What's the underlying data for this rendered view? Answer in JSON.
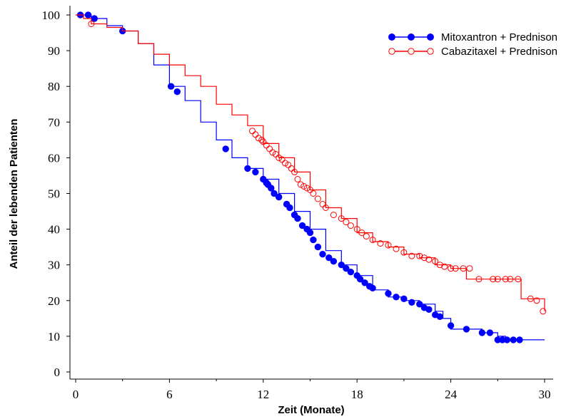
{
  "chart_data": {
    "type": "line",
    "subtype": "kaplan-meier",
    "title": "",
    "xlabel": "Zeit (Monate)",
    "ylabel": "Anteil der lebenden Patienten",
    "xlim": [
      0,
      30
    ],
    "ylim": [
      0,
      100
    ],
    "x_ticks": [
      0,
      6,
      12,
      18,
      24,
      30
    ],
    "y_ticks": [
      0,
      10,
      20,
      30,
      40,
      50,
      60,
      70,
      80,
      90,
      100
    ],
    "grid": false,
    "legend_position": "top-right",
    "series": [
      {
        "name": "Mitoxantron + Prednison",
        "color": "#0000ff",
        "marker": "filled-circle",
        "curve": [
          [
            0,
            100
          ],
          [
            0.5,
            100
          ],
          [
            1.0,
            99
          ],
          [
            2.0,
            97
          ],
          [
            3.0,
            95.5
          ],
          [
            4.0,
            92
          ],
          [
            5.0,
            86
          ],
          [
            6.0,
            80
          ],
          [
            7.0,
            76
          ],
          [
            8.0,
            70
          ],
          [
            9.0,
            65
          ],
          [
            10.0,
            60
          ],
          [
            11.0,
            57
          ],
          [
            12.0,
            54
          ],
          [
            13.0,
            50
          ],
          [
            14.0,
            45
          ],
          [
            15.0,
            40
          ],
          [
            16.0,
            34
          ],
          [
            17.0,
            30
          ],
          [
            18.0,
            27
          ],
          [
            19.0,
            23
          ],
          [
            20.0,
            21
          ],
          [
            21.0,
            20
          ],
          [
            22.0,
            19
          ],
          [
            23.0,
            17
          ],
          [
            23.5,
            15
          ],
          [
            24.0,
            12
          ],
          [
            25.0,
            12
          ],
          [
            26.0,
            11
          ],
          [
            27.0,
            10
          ],
          [
            27.5,
            9
          ],
          [
            30.0,
            9
          ]
        ],
        "censored": [
          [
            0.3,
            100
          ],
          [
            0.8,
            100
          ],
          [
            1.2,
            99
          ],
          [
            3.0,
            95.5
          ],
          [
            6.1,
            80
          ],
          [
            6.5,
            78.5
          ],
          [
            9.6,
            62.5
          ],
          [
            11.0,
            57
          ],
          [
            11.5,
            56
          ],
          [
            12.0,
            54
          ],
          [
            12.2,
            53
          ],
          [
            12.3,
            52.5
          ],
          [
            12.5,
            51.5
          ],
          [
            12.7,
            50
          ],
          [
            13.0,
            49
          ],
          [
            13.5,
            47
          ],
          [
            13.7,
            46
          ],
          [
            14.0,
            44
          ],
          [
            14.2,
            43
          ],
          [
            14.5,
            41
          ],
          [
            14.8,
            40
          ],
          [
            15.0,
            39
          ],
          [
            15.2,
            37
          ],
          [
            15.5,
            35
          ],
          [
            15.8,
            33
          ],
          [
            16.2,
            32
          ],
          [
            16.5,
            31
          ],
          [
            17.0,
            30
          ],
          [
            17.3,
            29
          ],
          [
            17.6,
            28
          ],
          [
            18.0,
            27
          ],
          [
            18.2,
            26
          ],
          [
            18.5,
            25
          ],
          [
            18.8,
            24
          ],
          [
            19.0,
            23.5
          ],
          [
            20.0,
            22
          ],
          [
            20.5,
            21
          ],
          [
            21.0,
            20.5
          ],
          [
            21.5,
            19.5
          ],
          [
            22.0,
            19
          ],
          [
            22.3,
            18
          ],
          [
            22.6,
            17.5
          ],
          [
            23.0,
            16
          ],
          [
            23.3,
            15.5
          ],
          [
            24.0,
            13
          ],
          [
            25.0,
            12
          ],
          [
            26.0,
            11
          ],
          [
            26.5,
            11
          ],
          [
            27.0,
            9
          ],
          [
            27.3,
            9
          ],
          [
            27.6,
            9
          ],
          [
            28.0,
            9
          ],
          [
            28.4,
            9
          ]
        ]
      },
      {
        "name": "Cabazitaxel + Prednison",
        "color": "#ff0000",
        "marker": "open-circle",
        "curve": [
          [
            0,
            100
          ],
          [
            0.5,
            99
          ],
          [
            1.0,
            97.5
          ],
          [
            2.0,
            96.5
          ],
          [
            3.0,
            95.5
          ],
          [
            4.0,
            92
          ],
          [
            5.0,
            89
          ],
          [
            6.0,
            86
          ],
          [
            7.0,
            83
          ],
          [
            8.0,
            80
          ],
          [
            9.0,
            75
          ],
          [
            10.0,
            72
          ],
          [
            11.0,
            69
          ],
          [
            12.0,
            64
          ],
          [
            13.0,
            60
          ],
          [
            14.0,
            56
          ],
          [
            15.0,
            51
          ],
          [
            16.0,
            46
          ],
          [
            17.0,
            43
          ],
          [
            18.0,
            39
          ],
          [
            19.0,
            36.5
          ],
          [
            20.0,
            35
          ],
          [
            21.0,
            33
          ],
          [
            22.0,
            32
          ],
          [
            23.0,
            30
          ],
          [
            24.0,
            29
          ],
          [
            25.0,
            26
          ],
          [
            26.0,
            26
          ],
          [
            27.0,
            26
          ],
          [
            28.0,
            26
          ],
          [
            28.5,
            20.5
          ],
          [
            29.5,
            20.5
          ],
          [
            30.0,
            17
          ]
        ],
        "censored": [
          [
            1.0,
            97.5
          ],
          [
            11.3,
            67.5
          ],
          [
            11.5,
            66.5
          ],
          [
            11.7,
            65.5
          ],
          [
            11.9,
            65
          ],
          [
            12.0,
            64.5
          ],
          [
            12.2,
            63.5
          ],
          [
            12.4,
            62.5
          ],
          [
            12.6,
            61.5
          ],
          [
            12.8,
            61
          ],
          [
            13.0,
            60
          ],
          [
            13.2,
            59.5
          ],
          [
            13.4,
            58.5
          ],
          [
            13.6,
            58
          ],
          [
            13.8,
            57
          ],
          [
            14.0,
            56
          ],
          [
            14.2,
            54
          ],
          [
            14.4,
            52.5
          ],
          [
            14.6,
            52
          ],
          [
            14.8,
            51.5
          ],
          [
            15.0,
            51
          ],
          [
            15.2,
            50
          ],
          [
            15.5,
            48.5
          ],
          [
            15.8,
            47
          ],
          [
            16.0,
            46
          ],
          [
            16.5,
            44
          ],
          [
            17.0,
            43
          ],
          [
            17.3,
            42
          ],
          [
            17.6,
            41
          ],
          [
            18.0,
            40
          ],
          [
            18.3,
            39
          ],
          [
            18.6,
            38
          ],
          [
            19.0,
            37
          ],
          [
            19.5,
            36
          ],
          [
            20.0,
            35.5
          ],
          [
            20.5,
            34.5
          ],
          [
            21.0,
            33.5
          ],
          [
            21.5,
            32.5
          ],
          [
            22.0,
            32.5
          ],
          [
            22.3,
            32
          ],
          [
            22.6,
            31.5
          ],
          [
            23.0,
            31
          ],
          [
            23.3,
            30
          ],
          [
            23.6,
            29.5
          ],
          [
            24.0,
            29
          ],
          [
            24.3,
            29
          ],
          [
            24.8,
            29
          ],
          [
            25.2,
            29
          ],
          [
            25.8,
            26
          ],
          [
            26.7,
            26
          ],
          [
            27.0,
            26
          ],
          [
            27.5,
            26
          ],
          [
            27.8,
            26
          ],
          [
            28.3,
            26
          ],
          [
            29.1,
            20.5
          ],
          [
            29.5,
            20
          ],
          [
            29.9,
            17
          ]
        ]
      }
    ]
  }
}
